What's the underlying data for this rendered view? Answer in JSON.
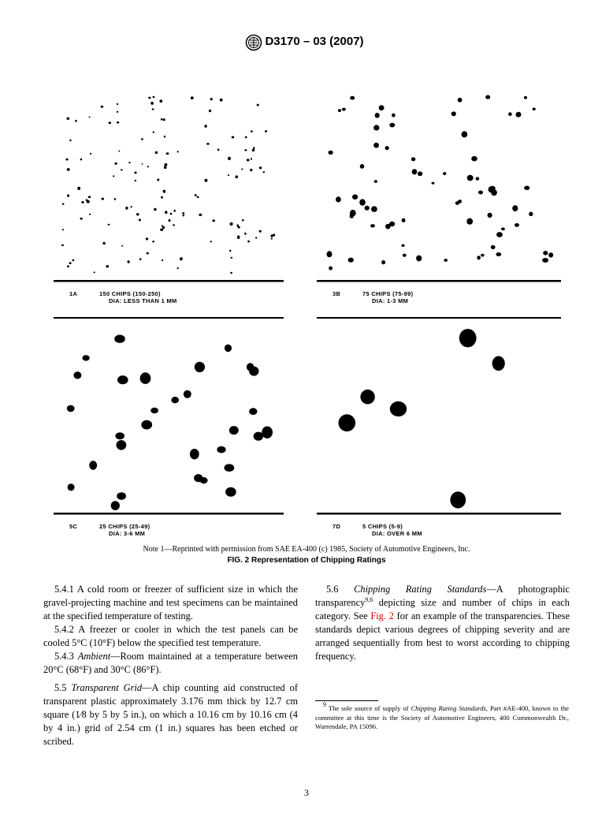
{
  "header": {
    "title": "D3170 – 03 (2007)"
  },
  "figure": {
    "panels": [
      {
        "code": "1A",
        "chips": "150 CHIPS (150-250)",
        "dia": "DIA: LESS THAN 1 MM"
      },
      {
        "code": "3B",
        "chips": "75 CHIPS (75-99)",
        "dia": "DIA: 1-3 MM"
      },
      {
        "code": "5C",
        "chips": "25 CHIPS (25-49)",
        "dia": "DIA: 3-6 MM"
      },
      {
        "code": "7D",
        "chips": "5 CHIPS (5-9)",
        "dia": "DIA: OVER 6 MM"
      }
    ],
    "note": "Note 1—Reprinted with permission from SAE EA-400 (c) 1985, Society of Automotive Engineers, Inc.",
    "caption": "FIG. 2 Representation of Chipping Ratings"
  },
  "columns": [
    [
      [
        {
          "text": "5.4.1 A cold room or freezer of sufficient size in which the gravel-projecting machine and test specimens can be maintained at the specified temperature of testing."
        }
      ],
      [
        {
          "text": "5.4.2 A freezer or cooler in which the test panels can be cooled 5°C (10°F) below the specified test temperature."
        }
      ],
      [
        {
          "text": "5.4.3 "
        },
        {
          "text": "Ambient",
          "style": "i"
        },
        {
          "text": "—Room maintained at a temperature between 20°C (68°F) and 30°C (86°F)."
        }
      ],
      [
        {
          "text": "5.5 "
        },
        {
          "text": "Transparent Grid",
          "style": "i"
        },
        {
          "text": "—A chip counting aid constructed of transparent plastic approximately 3.176 mm thick by 12.7 cm square (1⁄8 by 5 by 5 in.), on which a 10.16 cm by 10.16 cm (4 by 4 in.) grid of 2.54 cm (1 in.) squares has been etched or scribed."
        }
      ]
    ],
    [
      [
        {
          "text": "5.6 "
        },
        {
          "text": "Chipping Rating Standards",
          "style": "i"
        },
        {
          "text": "—A photographic transparency"
        },
        {
          "text": "9,6",
          "style": "sup"
        },
        {
          "text": " depicting size and number of chips in each category. See "
        },
        {
          "text": "Fig. 2",
          "style": "link"
        },
        {
          "text": " for an example of the transparencies. These standards depict various degrees of chipping severity and are arranged sequentially from best to worst according to chipping frequency."
        }
      ]
    ]
  ],
  "footnote": [
    {
      "text": "9",
      "style": "sup"
    },
    {
      "text": " The sole source of supply of "
    },
    {
      "text": "Chipping Rating Standards",
      "style": "i"
    },
    {
      "text": ", Part #AE-400, known to the committee at this time is the Society of Automotive Engineers, 400 Commonwealth Dr., Warrendale, PA 15096."
    }
  ],
  "page_number": "3"
}
